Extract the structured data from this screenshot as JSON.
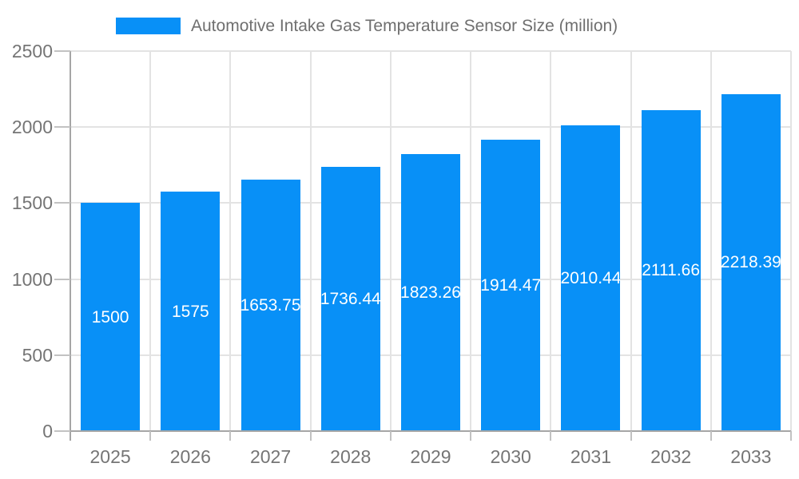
{
  "legend": {
    "items": [
      {
        "label": "Automotive Intake Gas Temperature Sensor Size (million)",
        "color": "#0890F7"
      }
    ]
  },
  "chart_data": {
    "type": "bar",
    "title": "Automotive Intake Gas Temperature Sensor Size (million)",
    "series_name": "Automotive Intake Gas Temperature Sensor Size (million)",
    "categories": [
      "2025",
      "2026",
      "2027",
      "2028",
      "2029",
      "2030",
      "2031",
      "2032",
      "2033"
    ],
    "values": [
      1500,
      1575,
      1653.75,
      1736.44,
      1823.26,
      1914.47,
      2010.44,
      2111.66,
      2218.39
    ],
    "value_labels": [
      "1500",
      "1575",
      "1653.75",
      "1736.44",
      "1823.26",
      "1914.47",
      "2010.44",
      "2111.66",
      "2218.39"
    ],
    "xlabel": "",
    "ylabel": "",
    "ylim": [
      0,
      2500
    ],
    "yticks": [
      0,
      500,
      1000,
      1500,
      2000,
      2500
    ],
    "grid": true,
    "legend_position": "top",
    "bar_color": "#0890F7",
    "value_label_color": "#ffffff"
  },
  "colors": {
    "bar": "#0890F7",
    "grid": "#e3e3e3",
    "axis": "#a6a6a6",
    "tick": "#c2c2c2",
    "tick_text": "#757575",
    "legend_text": "#6f6f6f",
    "background": "#ffffff"
  }
}
